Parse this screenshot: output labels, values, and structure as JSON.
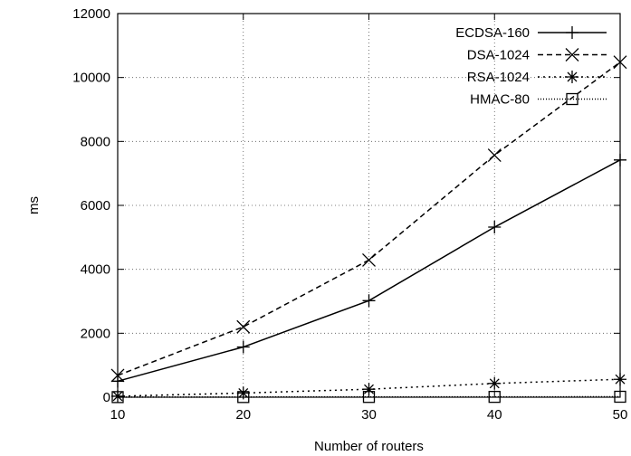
{
  "chart_data": {
    "type": "line",
    "xlabel": "Number of routers",
    "ylabel": "ms",
    "xlim": [
      10,
      50
    ],
    "ylim": [
      0,
      12000
    ],
    "x_ticks": [
      "10",
      "20",
      "30",
      "40",
      "50"
    ],
    "y_ticks": [
      "0",
      "2000",
      "4000",
      "6000",
      "8000",
      "10000",
      "12000"
    ],
    "grid": true,
    "legend_position": "top-right",
    "x": [
      10,
      20,
      30,
      40,
      50
    ],
    "series": [
      {
        "name": "ECDSA-160",
        "values": [
          500,
          1570,
          3020,
          5320,
          7420
        ],
        "marker": "plus",
        "dash": "solid"
      },
      {
        "name": "DSA-1024",
        "values": [
          680,
          2200,
          4290,
          7570,
          10480
        ],
        "marker": "cross",
        "dash": "dashed"
      },
      {
        "name": "RSA-1024",
        "values": [
          30,
          130,
          250,
          430,
          560
        ],
        "marker": "star",
        "dash": "dotted"
      },
      {
        "name": "HMAC-80",
        "values": [
          3,
          5,
          8,
          10,
          14
        ],
        "marker": "square",
        "dash": "dense-dotted"
      }
    ]
  }
}
